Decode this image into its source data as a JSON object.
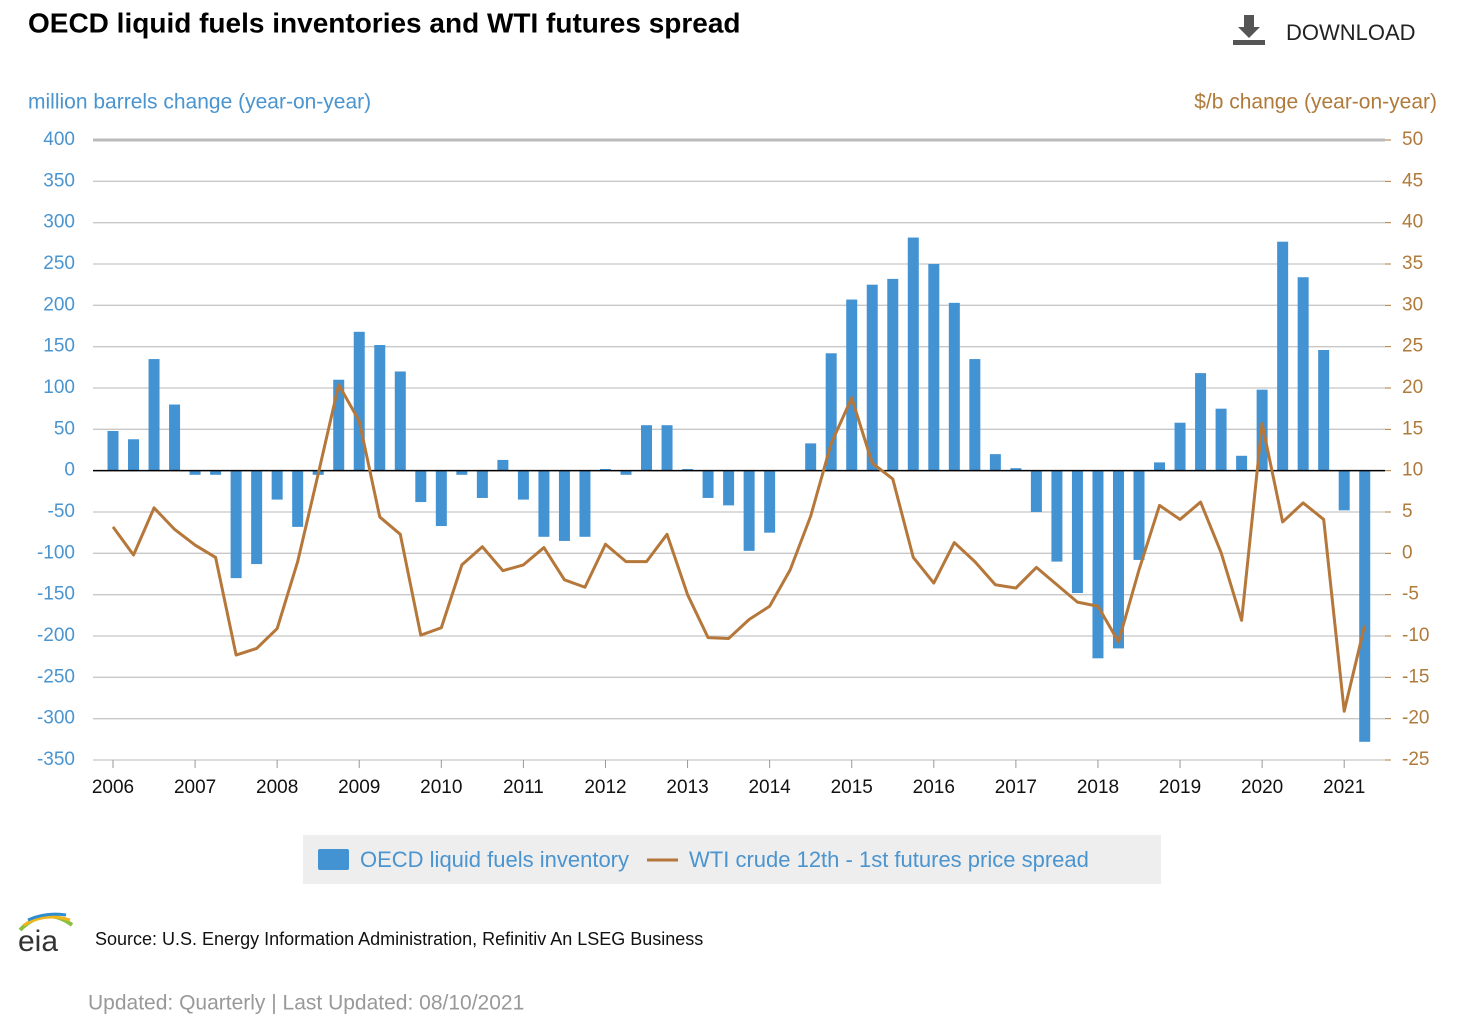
{
  "chart_data": {
    "type": "bar",
    "title": "OECD liquid fuels inventories and WTI futures spread",
    "y_label": "million barrels change (year-on-year)",
    "y2_label": "$/b change (year-on-year)",
    "categories": [
      "2006",
      null,
      null,
      null,
      "2007",
      null,
      null,
      null,
      "2008",
      null,
      null,
      null,
      "2009",
      null,
      null,
      null,
      "2010",
      null,
      null,
      null,
      "2011",
      null,
      null,
      null,
      "2012",
      null,
      null,
      null,
      "2013",
      null,
      null,
      null,
      "2014",
      null,
      null,
      null,
      "2015",
      null,
      null,
      null,
      "2016",
      null,
      null,
      null,
      "2017",
      null,
      null,
      null,
      "2018",
      null,
      null,
      null,
      "2019",
      null,
      null,
      null,
      "2020",
      null,
      null,
      null,
      "2021",
      null
    ],
    "ylim": [
      -350,
      400
    ],
    "yticks": [
      -350,
      -300,
      -250,
      -200,
      -150,
      -100,
      -50,
      0,
      50,
      100,
      150,
      200,
      250,
      300,
      350,
      400
    ],
    "y2lim": [
      -25,
      50
    ],
    "y2ticks": [
      -25,
      -20,
      -15,
      -10,
      -5,
      0,
      5,
      10,
      15,
      20,
      25,
      30,
      35,
      40,
      45,
      50
    ],
    "grid": true,
    "series": [
      {
        "name": "OECD liquid fuels inventory",
        "type": "bar",
        "color": "#4393d3",
        "values": [
          48,
          38,
          135,
          80,
          -5,
          -5,
          -130,
          -113,
          -35,
          -68,
          -5,
          110,
          168,
          152,
          120,
          -38,
          -67,
          -5,
          -33,
          13,
          -35,
          -80,
          -85,
          -80,
          2,
          -5,
          55,
          55,
          2,
          -33,
          -42,
          -97,
          -75,
          0,
          33,
          142,
          207,
          225,
          232,
          282,
          250,
          203,
          135,
          20,
          3,
          -50,
          -110,
          -148,
          -227,
          -215,
          -108,
          10,
          58,
          118,
          75,
          18,
          98,
          277,
          234,
          146,
          -48,
          -328
        ]
      },
      {
        "name": "WTI crude 12th - 1st futures price spread",
        "type": "line",
        "axis": "y2",
        "color": "#b5773a",
        "values": [
          3.2,
          -0.2,
          5.5,
          2.9,
          1.0,
          -0.5,
          -12.3,
          -11.5,
          -9.1,
          -1.0,
          9.6,
          20.4,
          16.0,
          4.4,
          2.3,
          -9.9,
          -9.0,
          -1.4,
          0.8,
          -2.1,
          -1.4,
          0.7,
          -3.2,
          -4.1,
          1.1,
          -1.0,
          -1.0,
          2.3,
          -5.0,
          -10.2,
          -10.3,
          -8.0,
          -6.4,
          -2.0,
          4.5,
          13.3,
          18.8,
          10.9,
          9.0,
          -0.5,
          -3.6,
          1.3,
          -1.0,
          -3.8,
          -4.2,
          -1.7,
          -3.8,
          -5.9,
          -6.4,
          -10.7,
          -2.0,
          5.8,
          4.1,
          6.2,
          0.1,
          -8.1,
          15.7,
          3.8,
          6.1,
          4.1,
          -19.1,
          -8.7
        ]
      }
    ]
  },
  "download": "DOWNLOAD",
  "logo": "eia",
  "source": "Source: U.S. Energy Information Administration, Refinitiv An LSEG Business",
  "updated": "Updated: Quarterly | Last Updated: 08/10/2021"
}
